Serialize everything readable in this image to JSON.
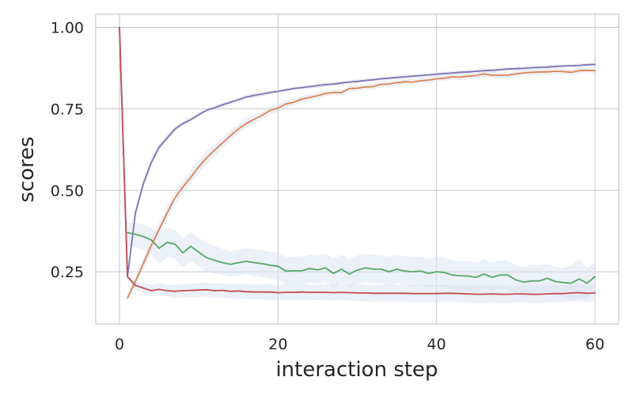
{
  "chart_data": {
    "type": "line",
    "title": "",
    "xlabel": "interaction step",
    "ylabel": "scores",
    "xlim": [
      -3,
      63
    ],
    "ylim": [
      0.09,
      1.04
    ],
    "grid": true,
    "legend": "none",
    "x_ticks": [
      0,
      20,
      40,
      60
    ],
    "x_tick_labels": [
      "0",
      "20",
      "40",
      "60"
    ],
    "y_ticks": [
      0.25,
      0.5,
      0.75,
      1.0
    ],
    "y_tick_labels": [
      "0.25",
      "0.50",
      "0.75",
      "1.00"
    ],
    "band_color": "#dde3f0",
    "grid_color": "#cccccc",
    "series": [
      {
        "color": "#8172b3",
        "x": [
          0,
          1,
          2,
          3,
          4,
          5,
          6,
          7,
          8,
          9,
          10,
          11,
          12,
          13,
          14,
          15,
          16,
          17,
          18,
          19,
          20,
          21,
          22,
          23,
          24,
          25,
          26,
          27,
          28,
          29,
          30,
          31,
          32,
          33,
          34,
          35,
          36,
          37,
          38,
          39,
          40,
          41,
          42,
          43,
          44,
          45,
          46,
          47,
          48,
          49,
          50,
          51,
          52,
          53,
          54,
          55,
          56,
          57,
          58,
          59,
          60
        ],
        "values": [
          1.0,
          0.235,
          0.43,
          0.52,
          0.585,
          0.632,
          0.66,
          0.688,
          0.705,
          0.717,
          0.732,
          0.746,
          0.753,
          0.762,
          0.77,
          0.778,
          0.786,
          0.791,
          0.795,
          0.8,
          0.803,
          0.808,
          0.812,
          0.815,
          0.818,
          0.821,
          0.824,
          0.826,
          0.829,
          0.832,
          0.834,
          0.837,
          0.839,
          0.842,
          0.844,
          0.846,
          0.848,
          0.85,
          0.852,
          0.854,
          0.856,
          0.858,
          0.86,
          0.862,
          0.863,
          0.865,
          0.867,
          0.868,
          0.87,
          0.872,
          0.873,
          0.874,
          0.876,
          0.877,
          0.878,
          0.88,
          0.881,
          0.882,
          0.883,
          0.885,
          0.886
        ],
        "lower": [
          1.0,
          0.225,
          0.415,
          0.505,
          0.572,
          0.62,
          0.65,
          0.68,
          0.697,
          0.709,
          0.725,
          0.739,
          0.746,
          0.755,
          0.763,
          0.771,
          0.779,
          0.784,
          0.789,
          0.794,
          0.797,
          0.802,
          0.806,
          0.809,
          0.812,
          0.815,
          0.818,
          0.82,
          0.823,
          0.826,
          0.828,
          0.831,
          0.833,
          0.836,
          0.838,
          0.84,
          0.842,
          0.844,
          0.846,
          0.848,
          0.85,
          0.852,
          0.854,
          0.856,
          0.857,
          0.859,
          0.861,
          0.862,
          0.864,
          0.866,
          0.867,
          0.868,
          0.87,
          0.871,
          0.872,
          0.874,
          0.875,
          0.876,
          0.877,
          0.879,
          0.88
        ],
        "upper": [
          1.0,
          0.245,
          0.445,
          0.535,
          0.598,
          0.644,
          0.67,
          0.696,
          0.713,
          0.725,
          0.739,
          0.753,
          0.76,
          0.769,
          0.777,
          0.785,
          0.793,
          0.798,
          0.801,
          0.806,
          0.809,
          0.814,
          0.818,
          0.821,
          0.824,
          0.827,
          0.83,
          0.832,
          0.835,
          0.838,
          0.84,
          0.843,
          0.845,
          0.848,
          0.85,
          0.852,
          0.854,
          0.856,
          0.858,
          0.86,
          0.862,
          0.864,
          0.866,
          0.868,
          0.869,
          0.871,
          0.873,
          0.874,
          0.876,
          0.878,
          0.879,
          0.88,
          0.882,
          0.883,
          0.884,
          0.886,
          0.887,
          0.888,
          0.889,
          0.891,
          0.892
        ]
      },
      {
        "color": "#dd8452",
        "x": [
          1,
          2,
          3,
          4,
          5,
          6,
          7,
          8,
          9,
          10,
          11,
          12,
          13,
          14,
          15,
          16,
          17,
          18,
          19,
          20,
          21,
          22,
          23,
          24,
          25,
          26,
          27,
          28,
          29,
          30,
          31,
          32,
          33,
          34,
          35,
          36,
          37,
          38,
          39,
          40,
          41,
          42,
          43,
          44,
          45,
          46,
          47,
          48,
          49,
          50,
          51,
          52,
          53,
          54,
          55,
          56,
          57,
          58,
          59,
          60
        ],
        "values": [
          0.17,
          0.22,
          0.275,
          0.33,
          0.38,
          0.43,
          0.477,
          0.51,
          0.54,
          0.572,
          0.6,
          0.623,
          0.645,
          0.668,
          0.688,
          0.705,
          0.718,
          0.73,
          0.745,
          0.752,
          0.765,
          0.77,
          0.78,
          0.785,
          0.79,
          0.797,
          0.8,
          0.8,
          0.812,
          0.813,
          0.817,
          0.818,
          0.825,
          0.826,
          0.83,
          0.833,
          0.832,
          0.836,
          0.838,
          0.842,
          0.844,
          0.848,
          0.847,
          0.85,
          0.852,
          0.857,
          0.853,
          0.853,
          0.853,
          0.857,
          0.86,
          0.862,
          0.863,
          0.863,
          0.865,
          0.864,
          0.862,
          0.867,
          0.868,
          0.867
        ],
        "lower": [
          0.16,
          0.207,
          0.258,
          0.31,
          0.36,
          0.41,
          0.457,
          0.49,
          0.52,
          0.552,
          0.58,
          0.605,
          0.628,
          0.652,
          0.673,
          0.691,
          0.705,
          0.718,
          0.733,
          0.741,
          0.754,
          0.76,
          0.77,
          0.775,
          0.781,
          0.788,
          0.791,
          0.791,
          0.803,
          0.804,
          0.808,
          0.809,
          0.816,
          0.817,
          0.821,
          0.824,
          0.823,
          0.827,
          0.829,
          0.833,
          0.835,
          0.839,
          0.838,
          0.841,
          0.843,
          0.848,
          0.844,
          0.844,
          0.844,
          0.848,
          0.851,
          0.853,
          0.854,
          0.854,
          0.856,
          0.855,
          0.853,
          0.858,
          0.859,
          0.858
        ],
        "upper": [
          0.18,
          0.233,
          0.292,
          0.35,
          0.4,
          0.45,
          0.497,
          0.53,
          0.56,
          0.592,
          0.62,
          0.641,
          0.662,
          0.684,
          0.703,
          0.719,
          0.731,
          0.742,
          0.757,
          0.763,
          0.776,
          0.78,
          0.79,
          0.795,
          0.799,
          0.806,
          0.809,
          0.809,
          0.821,
          0.822,
          0.826,
          0.827,
          0.834,
          0.835,
          0.839,
          0.842,
          0.841,
          0.845,
          0.847,
          0.851,
          0.853,
          0.857,
          0.856,
          0.859,
          0.861,
          0.866,
          0.862,
          0.862,
          0.862,
          0.866,
          0.869,
          0.871,
          0.872,
          0.872,
          0.874,
          0.873,
          0.871,
          0.876,
          0.877,
          0.876
        ]
      },
      {
        "color": "#55a868",
        "x": [
          1,
          2,
          3,
          4,
          5,
          6,
          7,
          8,
          9,
          10,
          11,
          12,
          13,
          14,
          15,
          16,
          17,
          18,
          19,
          20,
          21,
          22,
          23,
          24,
          25,
          26,
          27,
          28,
          29,
          30,
          31,
          32,
          33,
          34,
          35,
          36,
          37,
          38,
          39,
          40,
          41,
          42,
          43,
          44,
          45,
          46,
          47,
          48,
          49,
          50,
          51,
          52,
          53,
          54,
          55,
          56,
          57,
          58,
          59,
          60
        ],
        "values": [
          0.37,
          0.365,
          0.358,
          0.348,
          0.322,
          0.34,
          0.335,
          0.308,
          0.328,
          0.31,
          0.293,
          0.285,
          0.278,
          0.273,
          0.278,
          0.282,
          0.278,
          0.275,
          0.27,
          0.267,
          0.252,
          0.253,
          0.253,
          0.26,
          0.256,
          0.262,
          0.245,
          0.258,
          0.243,
          0.255,
          0.262,
          0.258,
          0.258,
          0.25,
          0.258,
          0.252,
          0.25,
          0.252,
          0.245,
          0.25,
          0.248,
          0.24,
          0.238,
          0.237,
          0.233,
          0.243,
          0.233,
          0.24,
          0.24,
          0.225,
          0.218,
          0.222,
          0.222,
          0.23,
          0.22,
          0.217,
          0.215,
          0.228,
          0.215,
          0.235
        ],
        "lower": [
          0.33,
          0.325,
          0.318,
          0.305,
          0.275,
          0.295,
          0.29,
          0.262,
          0.285,
          0.265,
          0.25,
          0.245,
          0.24,
          0.235,
          0.238,
          0.242,
          0.238,
          0.233,
          0.228,
          0.225,
          0.21,
          0.21,
          0.21,
          0.218,
          0.213,
          0.22,
          0.2,
          0.215,
          0.2,
          0.212,
          0.22,
          0.215,
          0.215,
          0.205,
          0.215,
          0.208,
          0.205,
          0.208,
          0.2,
          0.205,
          0.203,
          0.195,
          0.193,
          0.193,
          0.188,
          0.2,
          0.19,
          0.197,
          0.197,
          0.18,
          0.17,
          0.175,
          0.175,
          0.185,
          0.175,
          0.17,
          0.16,
          0.165,
          0.17,
          0.19
        ],
        "upper": [
          0.4,
          0.4,
          0.395,
          0.385,
          0.368,
          0.385,
          0.38,
          0.352,
          0.372,
          0.355,
          0.337,
          0.33,
          0.32,
          0.313,
          0.318,
          0.322,
          0.318,
          0.317,
          0.312,
          0.31,
          0.295,
          0.297,
          0.297,
          0.303,
          0.3,
          0.305,
          0.29,
          0.302,
          0.288,
          0.3,
          0.305,
          0.302,
          0.302,
          0.295,
          0.302,
          0.297,
          0.295,
          0.297,
          0.29,
          0.295,
          0.293,
          0.285,
          0.283,
          0.282,
          0.278,
          0.288,
          0.278,
          0.285,
          0.285,
          0.27,
          0.265,
          0.27,
          0.27,
          0.275,
          0.265,
          0.262,
          0.27,
          0.29,
          0.26,
          0.28
        ]
      },
      {
        "color": "#c44e52",
        "x": [
          0,
          1,
          2,
          3,
          4,
          5,
          6,
          7,
          8,
          9,
          10,
          11,
          12,
          13,
          14,
          15,
          16,
          17,
          18,
          19,
          20,
          21,
          22,
          23,
          24,
          25,
          26,
          27,
          28,
          29,
          30,
          31,
          32,
          33,
          34,
          35,
          36,
          37,
          38,
          39,
          40,
          41,
          42,
          43,
          44,
          45,
          46,
          47,
          48,
          49,
          50,
          51,
          52,
          53,
          54,
          55,
          56,
          57,
          58,
          59,
          60
        ],
        "values": [
          1.0,
          0.235,
          0.208,
          0.2,
          0.192,
          0.196,
          0.192,
          0.19,
          0.192,
          0.193,
          0.194,
          0.195,
          0.192,
          0.193,
          0.19,
          0.191,
          0.189,
          0.188,
          0.188,
          0.188,
          0.186,
          0.187,
          0.187,
          0.188,
          0.187,
          0.187,
          0.187,
          0.186,
          0.187,
          0.186,
          0.185,
          0.185,
          0.184,
          0.184,
          0.184,
          0.184,
          0.184,
          0.183,
          0.183,
          0.183,
          0.183,
          0.184,
          0.184,
          0.183,
          0.182,
          0.181,
          0.181,
          0.182,
          0.181,
          0.181,
          0.182,
          0.182,
          0.181,
          0.181,
          0.182,
          0.183,
          0.183,
          0.185,
          0.186,
          0.184,
          0.185
        ],
        "lower": [
          1.0,
          0.225,
          0.195,
          0.185,
          0.175,
          0.178,
          0.174,
          0.17,
          0.172,
          0.172,
          0.172,
          0.173,
          0.17,
          0.171,
          0.168,
          0.168,
          0.166,
          0.165,
          0.165,
          0.164,
          0.162,
          0.163,
          0.163,
          0.164,
          0.163,
          0.163,
          0.163,
          0.162,
          0.163,
          0.162,
          0.16,
          0.16,
          0.158,
          0.158,
          0.158,
          0.158,
          0.158,
          0.157,
          0.157,
          0.157,
          0.157,
          0.158,
          0.158,
          0.157,
          0.156,
          0.155,
          0.155,
          0.156,
          0.155,
          0.155,
          0.156,
          0.156,
          0.155,
          0.155,
          0.156,
          0.157,
          0.157,
          0.159,
          0.16,
          0.158,
          0.159
        ],
        "upper": [
          1.0,
          0.245,
          0.22,
          0.215,
          0.21,
          0.214,
          0.21,
          0.21,
          0.212,
          0.214,
          0.216,
          0.217,
          0.214,
          0.215,
          0.212,
          0.214,
          0.212,
          0.211,
          0.211,
          0.212,
          0.21,
          0.211,
          0.211,
          0.212,
          0.211,
          0.211,
          0.211,
          0.21,
          0.211,
          0.21,
          0.21,
          0.21,
          0.21,
          0.21,
          0.21,
          0.21,
          0.21,
          0.209,
          0.209,
          0.209,
          0.209,
          0.21,
          0.21,
          0.209,
          0.208,
          0.207,
          0.207,
          0.208,
          0.207,
          0.207,
          0.208,
          0.208,
          0.207,
          0.207,
          0.208,
          0.209,
          0.209,
          0.211,
          0.212,
          0.21,
          0.211
        ]
      }
    ]
  }
}
